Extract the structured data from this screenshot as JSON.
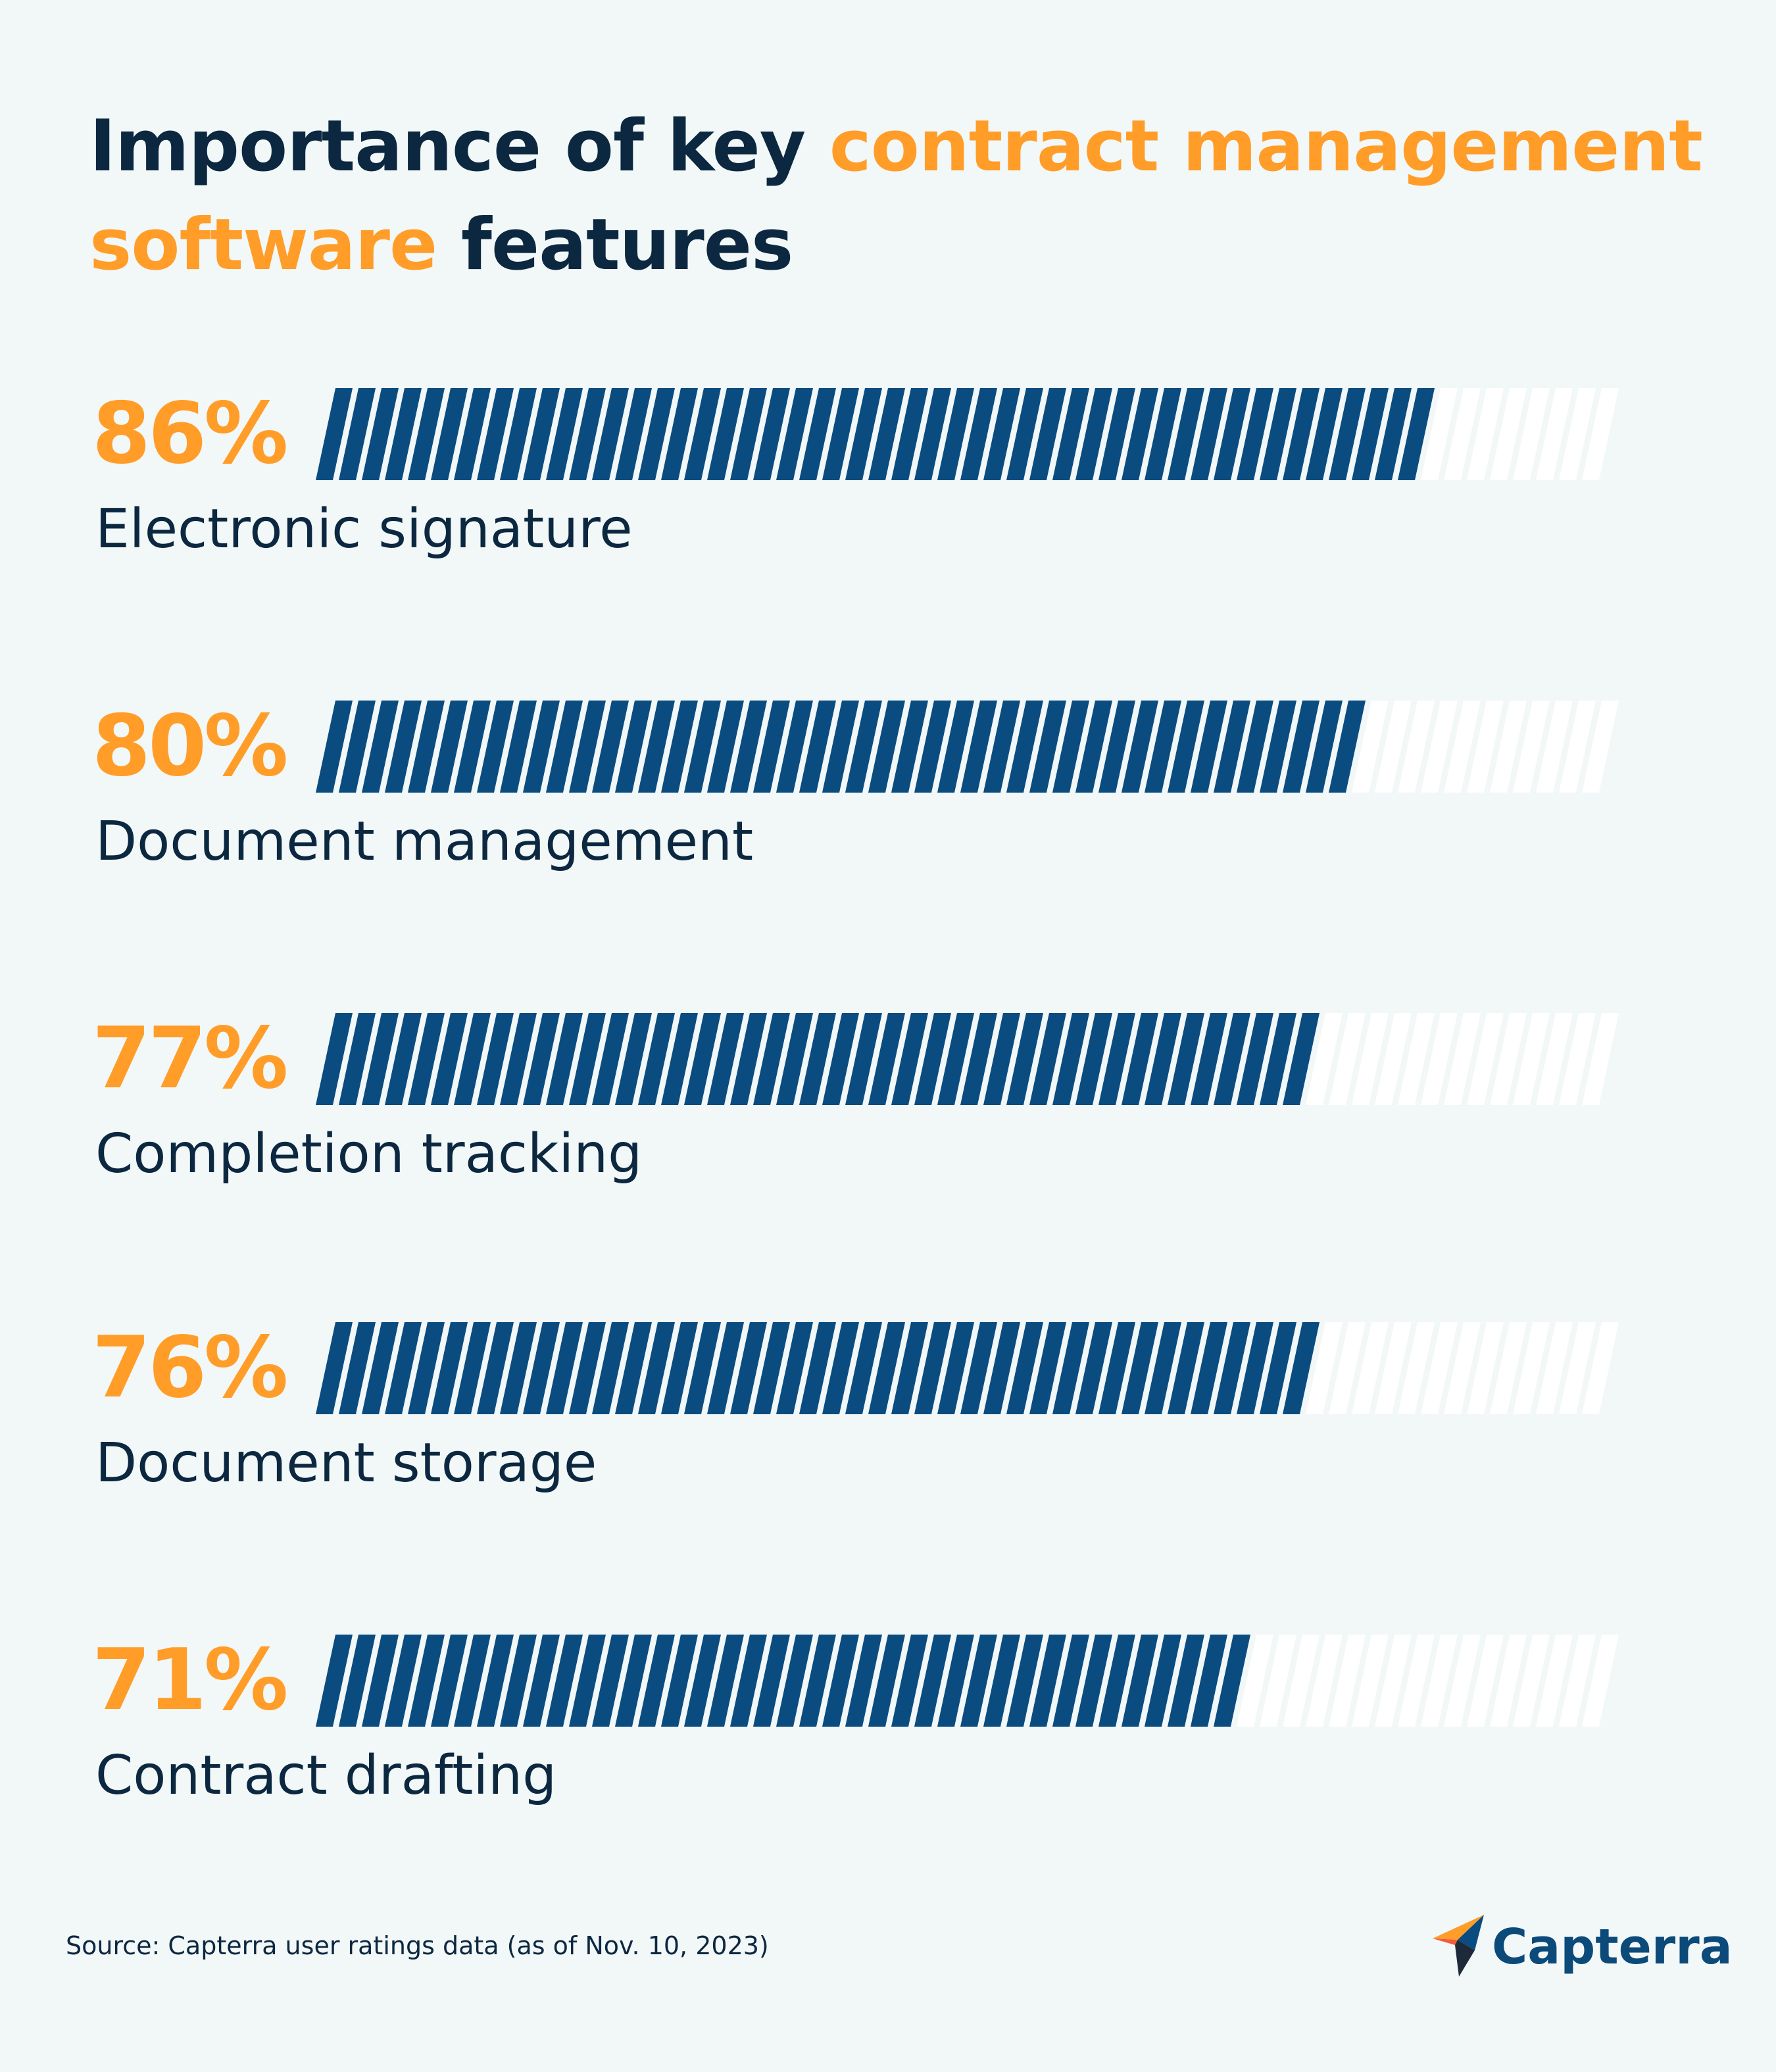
{
  "title": {
    "part1": "Importance of key ",
    "highlight": "contract management software",
    "part2": " features"
  },
  "chart_data": {
    "type": "bar",
    "orientation": "horizontal",
    "title": "Importance of key contract management software features",
    "categories": [
      "Electronic signature",
      "Document management",
      "Completion tracking",
      "Document storage",
      "Contract drafting"
    ],
    "values": [
      86,
      80,
      77,
      76,
      71
    ],
    "value_labels": [
      "86%",
      "80%",
      "77%",
      "76%",
      "71%"
    ],
    "xlim": [
      0,
      100
    ],
    "unit": "%"
  },
  "source": "Source: Capterra user ratings data (as of Nov. 10, 2023)",
  "brand": {
    "name": "Capterra",
    "logo_icon": "capterra-arrow-icon"
  },
  "colors": {
    "background": "#f2f7f7",
    "accent": "#ff9d28",
    "bar_fill": "#0a4c80",
    "bar_empty": "#ffffff",
    "text": "#0c2840"
  }
}
